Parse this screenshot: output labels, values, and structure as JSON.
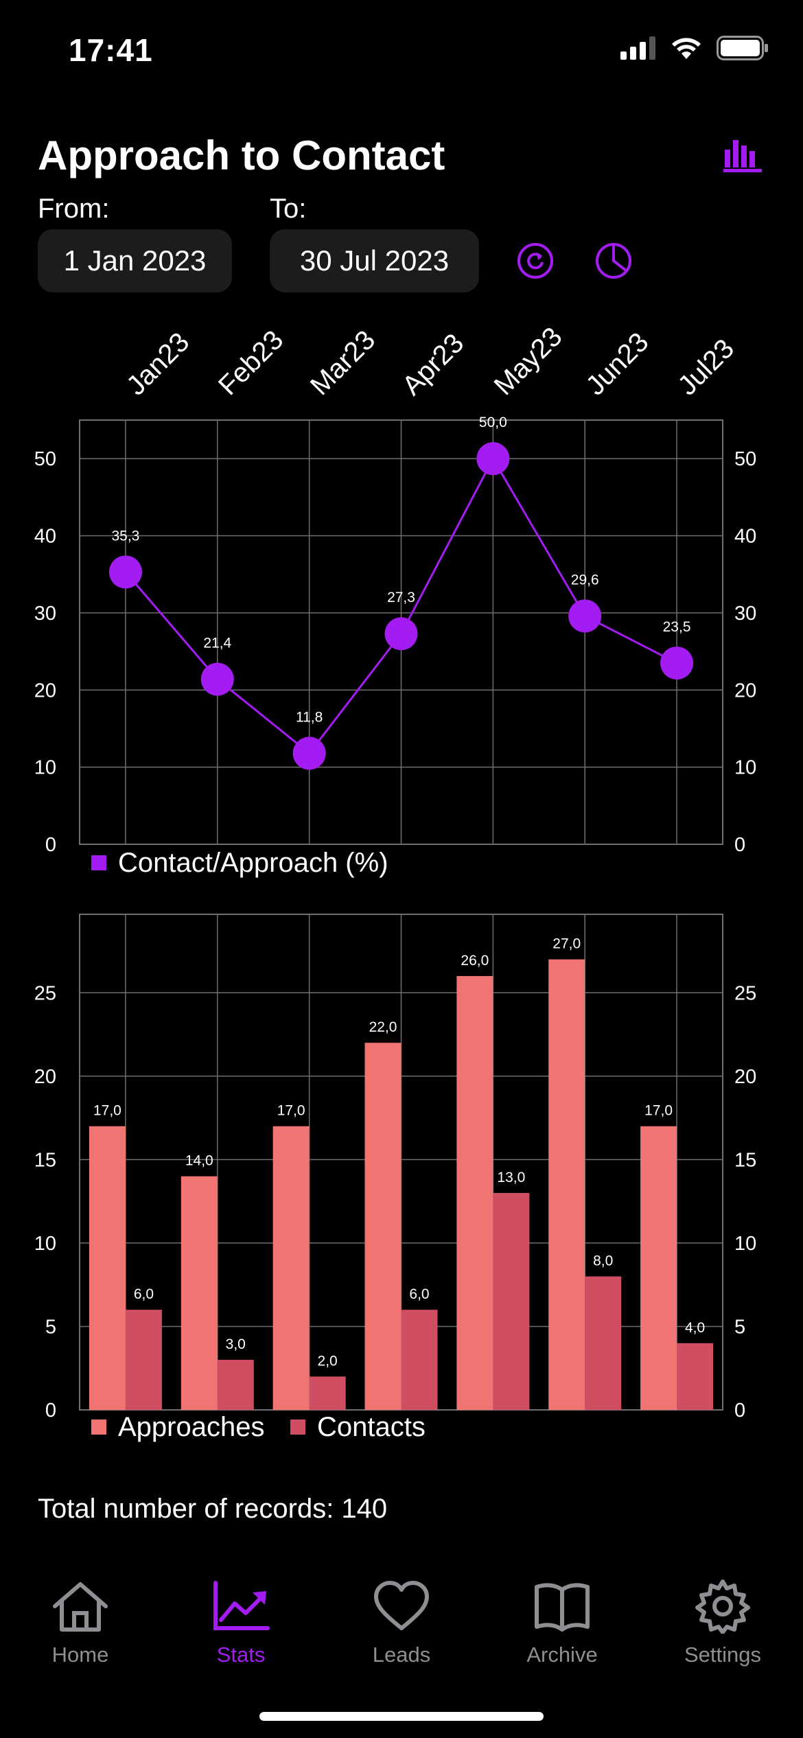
{
  "status": {
    "time": "17:41"
  },
  "header": {
    "title": "Approach to Contact"
  },
  "filters": {
    "from_label": "From:",
    "from_value": "1 Jan 2023",
    "to_label": "To:",
    "to_value": "30 Jul 2023"
  },
  "colors": {
    "accent": "#a31cf2",
    "approaches": "#ef7472",
    "contacts": "#d04e62",
    "grid": "#6e6e73",
    "inactive": "#8e8e93"
  },
  "chart_data": [
    {
      "type": "line",
      "categories": [
        "Jan23",
        "Feb23",
        "Mar23",
        "Apr23",
        "May23",
        "Jun23",
        "Jul23"
      ],
      "series": [
        {
          "name": "Contact/Approach (%)",
          "values": [
            35.3,
            21.4,
            11.8,
            27.3,
            50.0,
            29.6,
            23.5
          ],
          "labels": [
            "35,3",
            "21,4",
            "11,8",
            "27,3",
            "50,0",
            "29,6",
            "23,5"
          ]
        }
      ],
      "yticks": [
        "0",
        "10",
        "20",
        "30",
        "40",
        "50"
      ],
      "ylim": [
        0,
        55
      ],
      "grid": true,
      "legend": "bottom-left"
    },
    {
      "type": "bar",
      "categories": [
        "Jan23",
        "Feb23",
        "Mar23",
        "Apr23",
        "May23",
        "Jun23",
        "Jul23"
      ],
      "series": [
        {
          "name": "Approaches",
          "values": [
            17,
            14,
            17,
            22,
            26,
            27,
            17
          ],
          "labels": [
            "17,0",
            "14,0",
            "17,0",
            "22,0",
            "26,0",
            "27,0",
            "17,0"
          ]
        },
        {
          "name": "Contacts",
          "values": [
            6,
            3,
            2,
            6,
            13,
            8,
            4
          ],
          "labels": [
            "6,0",
            "3,0",
            "2,0",
            "6,0",
            "13,0",
            "8,0",
            "4,0"
          ]
        }
      ],
      "yticks": [
        "0",
        "5",
        "10",
        "15",
        "20",
        "25"
      ],
      "ylim": [
        0,
        29.7
      ],
      "grid": true,
      "legend": "bottom-left"
    }
  ],
  "summary": {
    "total_records": "Total number of records: 140"
  },
  "tabs": [
    {
      "label": "Home",
      "icon": "house-icon",
      "active": false
    },
    {
      "label": "Stats",
      "icon": "chart-trend-icon",
      "active": true
    },
    {
      "label": "Leads",
      "icon": "heart-icon",
      "active": false
    },
    {
      "label": "Archive",
      "icon": "book-icon",
      "active": false
    },
    {
      "label": "Settings",
      "icon": "gear-icon",
      "active": false
    }
  ]
}
